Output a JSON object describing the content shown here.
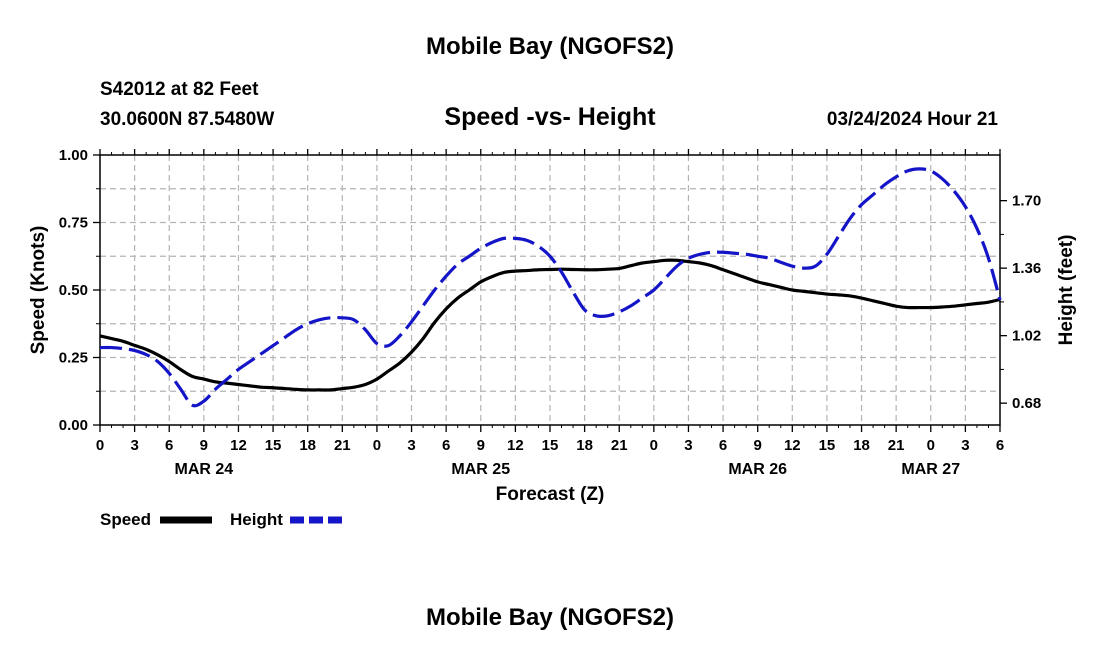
{
  "header": {
    "title": "Mobile Bay (NGOFS2)",
    "station": "S42012 at 82 Feet",
    "coords": "30.0600N  87.5480W",
    "subtitle": "Speed -vs- Height",
    "timestamp": "03/24/2024 Hour 21"
  },
  "footer": {
    "title": "Mobile Bay (NGOFS2)"
  },
  "legend": {
    "speed_label": "Speed",
    "height_label": "Height"
  },
  "colors": {
    "speed": "#000000",
    "height": "#1515c8"
  },
  "chart_data": {
    "type": "line",
    "title": "Speed -vs- Height",
    "xlabel": "Forecast (Z)",
    "ylabel": "Speed (Knots)",
    "y2label": "Height (feet)",
    "x_range_hours": [
      0,
      78
    ],
    "ylim": [
      0,
      1.0
    ],
    "y2lim": [
      0.57,
      1.93
    ],
    "grid": true,
    "legend_placement": "bottom-left",
    "x_tick_labels": [
      "0",
      "3",
      "6",
      "9",
      "12",
      "15",
      "18",
      "21",
      "0",
      "3",
      "6",
      "9",
      "12",
      "15",
      "18",
      "21",
      "0",
      "3",
      "6",
      "9",
      "12",
      "15",
      "18",
      "21",
      "0",
      "3",
      "6"
    ],
    "day_labels": [
      {
        "hour": 9,
        "label": "MAR 24"
      },
      {
        "hour": 33,
        "label": "MAR 25"
      },
      {
        "hour": 57,
        "label": "MAR 26"
      },
      {
        "hour": 72,
        "label": "MAR 27"
      }
    ],
    "y_tick_labels": [
      "0.00",
      "0.25",
      "0.50",
      "0.75",
      "1.00"
    ],
    "y_ticks": [
      0,
      0.25,
      0.5,
      0.75,
      1.0
    ],
    "y2_tick_labels": [
      "0.68",
      "1.02",
      "1.36",
      "1.70"
    ],
    "y2_ticks": [
      0.68,
      1.02,
      1.36,
      1.7
    ],
    "series": [
      {
        "name": "Speed",
        "axis": "left",
        "x": [
          0,
          1,
          2,
          3,
          4,
          5,
          6,
          7,
          8,
          9,
          10,
          11,
          12,
          13,
          14,
          15,
          16,
          17,
          18,
          19,
          20,
          21,
          22,
          23,
          24,
          25,
          26,
          27,
          28,
          29,
          30,
          31,
          32,
          33,
          34,
          35,
          36,
          37,
          38,
          39,
          40,
          41,
          42,
          43,
          44,
          45,
          46,
          47,
          48,
          49,
          50,
          51,
          52,
          53,
          54,
          55,
          56,
          57,
          58,
          59,
          60,
          61,
          62,
          63,
          64,
          65,
          66,
          67,
          68,
          69,
          70,
          71,
          72,
          73,
          74,
          75,
          76,
          77,
          78
        ],
        "values": [
          0.33,
          0.32,
          0.31,
          0.295,
          0.28,
          0.26,
          0.235,
          0.205,
          0.18,
          0.17,
          0.16,
          0.155,
          0.15,
          0.145,
          0.14,
          0.138,
          0.135,
          0.132,
          0.13,
          0.13,
          0.13,
          0.135,
          0.14,
          0.15,
          0.17,
          0.2,
          0.23,
          0.27,
          0.32,
          0.38,
          0.43,
          0.47,
          0.5,
          0.53,
          0.55,
          0.565,
          0.57,
          0.572,
          0.575,
          0.576,
          0.577,
          0.576,
          0.575,
          0.575,
          0.577,
          0.58,
          0.59,
          0.6,
          0.605,
          0.61,
          0.61,
          0.605,
          0.6,
          0.59,
          0.575,
          0.56,
          0.545,
          0.53,
          0.52,
          0.51,
          0.5,
          0.495,
          0.49,
          0.485,
          0.482,
          0.478,
          0.47,
          0.46,
          0.45,
          0.44,
          0.435,
          0.435,
          0.435,
          0.437,
          0.44,
          0.445,
          0.45,
          0.455,
          0.465
        ]
      },
      {
        "name": "Height",
        "axis": "right",
        "x": [
          0,
          1,
          2,
          3,
          4,
          5,
          6,
          7,
          8,
          9,
          10,
          11,
          12,
          13,
          14,
          15,
          16,
          17,
          18,
          19,
          20,
          21,
          22,
          23,
          24,
          25,
          26,
          27,
          28,
          29,
          30,
          31,
          32,
          33,
          34,
          35,
          36,
          37,
          38,
          39,
          40,
          41,
          42,
          43,
          44,
          45,
          46,
          47,
          48,
          49,
          50,
          51,
          52,
          53,
          54,
          55,
          56,
          57,
          58,
          59,
          60,
          61,
          62,
          63,
          64,
          65,
          66,
          67,
          68,
          69,
          70,
          71,
          72,
          73,
          74,
          75,
          76,
          77,
          78
        ],
        "values": [
          0.96,
          0.96,
          0.955,
          0.945,
          0.925,
          0.89,
          0.83,
          0.75,
          0.67,
          0.69,
          0.75,
          0.8,
          0.85,
          0.89,
          0.93,
          0.97,
          1.01,
          1.05,
          1.08,
          1.1,
          1.11,
          1.11,
          1.1,
          1.05,
          0.98,
          0.97,
          1.02,
          1.09,
          1.17,
          1.25,
          1.32,
          1.38,
          1.42,
          1.46,
          1.49,
          1.51,
          1.51,
          1.5,
          1.47,
          1.42,
          1.34,
          1.24,
          1.15,
          1.12,
          1.12,
          1.14,
          1.17,
          1.21,
          1.25,
          1.31,
          1.37,
          1.41,
          1.43,
          1.44,
          1.44,
          1.435,
          1.43,
          1.42,
          1.41,
          1.39,
          1.37,
          1.36,
          1.37,
          1.43,
          1.52,
          1.61,
          1.68,
          1.73,
          1.78,
          1.82,
          1.85,
          1.86,
          1.85,
          1.81,
          1.75,
          1.67,
          1.56,
          1.41,
          1.2
        ]
      }
    ]
  }
}
